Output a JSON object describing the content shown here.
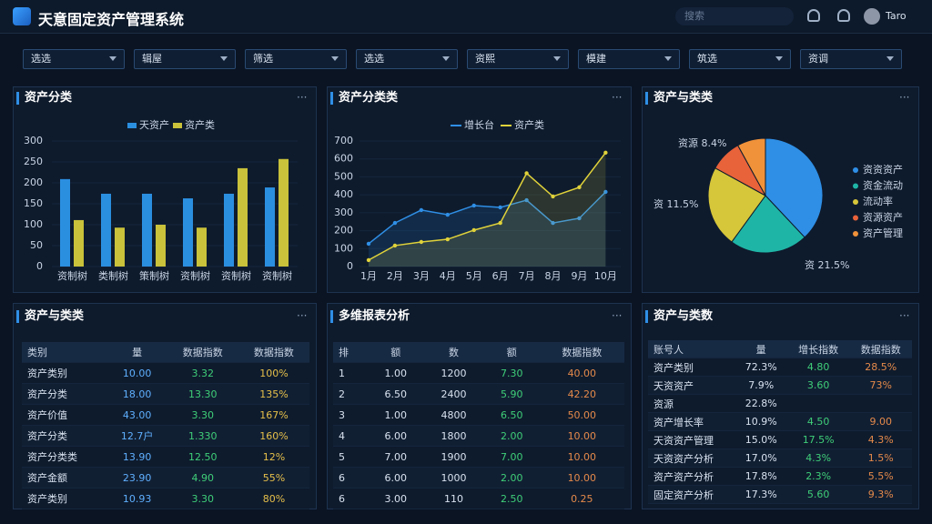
{
  "header": {
    "title": "天意固定资产管理系统",
    "search": "搜索",
    "user": "Taro"
  },
  "filters": [
    "选选",
    "辑屋",
    "筛选",
    "选选",
    "资熙",
    "模建",
    "筑选",
    "资调"
  ],
  "bar_panel": {
    "title": "资产分类",
    "chart_data": {
      "type": "bar",
      "categories": [
        "资制树",
        "类制树",
        "策制树",
        "资制树",
        "资制树",
        "资制树"
      ],
      "series": [
        {
          "name": "天资产",
          "color": "#2b8fe0",
          "values": [
            209,
            174,
            174,
            163,
            174,
            189
          ]
        },
        {
          "name": "资产类",
          "color": "#c9c23a",
          "values": [
            111,
            93,
            100,
            93,
            235,
            257
          ]
        }
      ],
      "ylim": [
        0,
        300
      ],
      "yticks": [
        0,
        50,
        100,
        150,
        200,
        250,
        300
      ]
    }
  },
  "line_panel": {
    "title": "资产分类类",
    "chart_data": {
      "type": "line",
      "categories": [
        "1月",
        "2月",
        "3月",
        "4月",
        "5月",
        "6月",
        "7月",
        "8月",
        "9月",
        "10月"
      ],
      "series": [
        {
          "name": "增长台",
          "color": "#2f8fe6",
          "values": [
            127,
            243,
            315,
            289,
            340,
            330,
            370,
            243,
            269,
            416
          ]
        },
        {
          "name": "资产类",
          "color": "#e0d23a",
          "values": [
            36,
            117,
            137,
            152,
            203,
            243,
            520,
            391,
            442,
            635
          ]
        }
      ],
      "ylim": [
        0,
        700
      ],
      "yticks": [
        0,
        100,
        200,
        300,
        400,
        500,
        600,
        700
      ]
    }
  },
  "pie_panel": {
    "title": "资产与类类",
    "chart_data": {
      "type": "pie",
      "categories": [
        "资资资产",
        "资金流动",
        "流动率",
        "资源资产",
        "资产管理"
      ],
      "values": [
        38,
        22,
        23,
        9,
        8
      ],
      "colors": [
        "#2f8fe6",
        "#1fb5a6",
        "#d6c63a",
        "#e8623a",
        "#f0923a"
      ],
      "annotations": [
        "资源 8.4%",
        "资 11.5%",
        "资 21.5%"
      ]
    }
  },
  "table1": {
    "title": "资产与类类",
    "header": [
      "类别",
      "量",
      "数据指数",
      "数据指数"
    ],
    "rows": [
      [
        "资产类别",
        "10.00",
        "3.32",
        "100%"
      ],
      [
        "资产分类",
        "18.00",
        "13.30",
        "135%"
      ],
      [
        "资产价值",
        "43.00",
        "3.30",
        "167%"
      ],
      [
        "资产分类",
        "12.7户",
        "1.330",
        "160%"
      ],
      [
        "资产分类类",
        "13.90",
        "12.50",
        "12%"
      ],
      [
        "资产金额",
        "23.90",
        "4.90",
        "55%"
      ],
      [
        "资产类别",
        "10.93",
        "3.30",
        "80%"
      ]
    ]
  },
  "table2": {
    "title": "多维报表分析",
    "header": [
      "排",
      "额",
      "数",
      "额",
      "数据指数"
    ],
    "rows": [
      [
        "1",
        "1.00",
        "1200",
        "7.30",
        "40.00"
      ],
      [
        "2",
        "6.50",
        "2400",
        "5.90",
        "42.20"
      ],
      [
        "3",
        "1.00",
        "4800",
        "6.50",
        "50.00"
      ],
      [
        "4",
        "6.00",
        "1800",
        "2.00",
        "10.00"
      ],
      [
        "5",
        "7.00",
        "1900",
        "7.00",
        "10.00"
      ],
      [
        "6",
        "6.00",
        "1000",
        "2.00",
        "10.00"
      ],
      [
        "6",
        "3.00",
        "110",
        "2.50",
        "0.25"
      ]
    ]
  },
  "table3": {
    "title": "资产与类数",
    "header": [
      "账号人",
      "量",
      "增长指数",
      "数据指数"
    ],
    "rows": [
      [
        "资产类别",
        "72.3%",
        "4.80",
        "28.5%"
      ],
      [
        "天资资产",
        "7.9%",
        "3.60",
        "73%"
      ],
      [
        "资源",
        "22.8%"
      ],
      [
        "资产增长率",
        "10.9%",
        "4.50",
        "9.00"
      ],
      [
        "天资资产管理",
        "15.0%",
        "17.5%",
        "4.3%"
      ],
      [
        "天资资产分析",
        "17.0%",
        "4.3%",
        "1.5%"
      ],
      [
        "资产资产分析",
        "17.8%",
        "2.3%",
        "5.5%"
      ],
      [
        "固定资产分析",
        "17.3%",
        "5.60",
        "9.3%"
      ]
    ]
  }
}
